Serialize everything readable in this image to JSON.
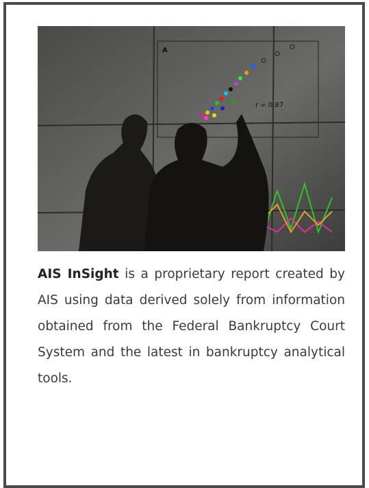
{
  "photo": {
    "panel_letter": "A",
    "correlation": "r = 0.87"
  },
  "card": {
    "lead": "AIS InSight",
    "body": " is a proprietary report created by AIS using data derived solely from information obtained from the Federal Bankruptcy Court System and the latest in bankruptcy analytical tools."
  }
}
